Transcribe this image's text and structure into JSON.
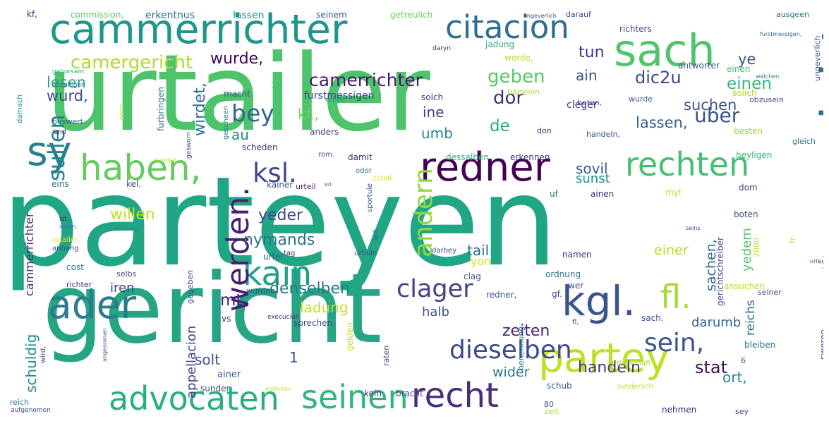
{
  "word_cloud": {
    "words": [
      {
        "text": "urtailer",
        "color": "#4dc36b"
      },
      {
        "text": "parteyen",
        "color": "#21a685"
      },
      {
        "text": "gericht",
        "color": "#25a584"
      },
      {
        "text": "cammerrichter",
        "color": "#1f968b"
      },
      {
        "text": "cammergericht",
        "color": "#2a788e"
      },
      {
        "text": "sach",
        "color": "#4fc46a"
      },
      {
        "text": "citacion",
        "color": "#2e6e8e"
      },
      {
        "text": "sy",
        "color": "#26828e"
      },
      {
        "text": "ader",
        "color": "#2a7b8e"
      },
      {
        "text": "haben,",
        "color": "#63cb5f"
      },
      {
        "text": "redner",
        "color": "#440154"
      },
      {
        "text": "rechten",
        "color": "#44bf70"
      },
      {
        "text": "kgl.",
        "color": "#3a548c"
      },
      {
        "text": "partey",
        "color": "#bddf26"
      },
      {
        "text": "advocaten",
        "color": "#29af7f"
      },
      {
        "text": "recht",
        "color": "#472d7b"
      },
      {
        "text": "seinen",
        "color": "#2fb47c"
      },
      {
        "text": "dieselben",
        "color": "#3e4a89"
      },
      {
        "text": "sein,",
        "color": "#39568c"
      },
      {
        "text": "kain",
        "color": "#1fa088"
      },
      {
        "text": "fl.",
        "color": "#a5db36"
      },
      {
        "text": "werden.",
        "color": "#481f70"
      },
      {
        "text": "ksl.",
        "color": "#3f4889"
      },
      {
        "text": "bey",
        "color": "#31688e"
      },
      {
        "text": "clager",
        "color": "#414487"
      },
      {
        "text": "sullen",
        "color": "#25848e"
      },
      {
        "text": "andern",
        "color": "#93d741"
      },
      {
        "text": "camergericht",
        "color": "#addc30"
      },
      {
        "text": "camerrichter",
        "color": "#481a6c"
      },
      {
        "text": "wurde,",
        "color": "#450559"
      },
      {
        "text": "uber",
        "color": "#3b528b"
      },
      {
        "text": "dic2u",
        "color": "#3f4788"
      },
      {
        "text": "tun",
        "color": "#46327e"
      },
      {
        "text": "einen",
        "color": "#35b779"
      },
      {
        "text": "ye",
        "color": "#3c4f8a"
      },
      {
        "text": "ain",
        "color": "#3d4e8a"
      },
      {
        "text": "geben",
        "color": "#58c765"
      },
      {
        "text": "dor",
        "color": "#472c7a"
      },
      {
        "text": "lesen",
        "color": "#22a884"
      },
      {
        "text": "wurd,",
        "color": "#3a538b"
      },
      {
        "text": "kf.,",
        "color": "#7ad151"
      },
      {
        "text": "ine",
        "color": "#424086"
      },
      {
        "text": "de",
        "color": "#26ad81"
      },
      {
        "text": "umb",
        "color": "#23898e"
      },
      {
        "text": "wirdet,",
        "color": "#2c728e"
      },
      {
        "text": "suchen",
        "color": "#3b518b"
      },
      {
        "text": "lassen,",
        "color": "#33638d"
      },
      {
        "text": "au",
        "color": "#27808e"
      },
      {
        "text": "sovil",
        "color": "#38588c"
      },
      {
        "text": "sunst",
        "color": "#21918c"
      },
      {
        "text": "willen",
        "color": "#c8e020"
      },
      {
        "text": "yeder",
        "color": "#3e4989"
      },
      {
        "text": "nymands",
        "color": "#2c728e"
      },
      {
        "text": "tail",
        "color": "#2d718e"
      },
      {
        "text": "yon",
        "color": "#d0e11c"
      },
      {
        "text": "mt.",
        "color": "#481c6e"
      },
      {
        "text": "denselben",
        "color": "#2a778e"
      },
      {
        "text": "ladung",
        "color": "#c2df23"
      },
      {
        "text": "einer",
        "color": "#b5de2b"
      },
      {
        "text": "yedem",
        "color": "#56c667"
      },
      {
        "text": "sachen,",
        "color": "#31688e"
      },
      {
        "text": "reichs",
        "color": "#2d708e"
      },
      {
        "text": "darumb",
        "color": "#34618d"
      },
      {
        "text": "halb",
        "color": "#3a548c"
      },
      {
        "text": "zeiten",
        "color": "#482374"
      },
      {
        "text": "appellacion",
        "color": "#3e4989"
      },
      {
        "text": "solt",
        "color": "#39558c"
      },
      {
        "text": "1",
        "color": "#3b528b"
      },
      {
        "text": "wider",
        "color": "#29798e"
      },
      {
        "text": "handeln",
        "color": "#453781"
      },
      {
        "text": "stat",
        "color": "#460b5e"
      },
      {
        "text": "ort,",
        "color": "#26828e"
      },
      {
        "text": "schuldig",
        "color": "#228b8d"
      },
      {
        "text": "cammerrichter",
        "color": "#46307e"
      },
      {
        "text": "iren",
        "color": "#433e85"
      },
      {
        "text": "urtailer",
        "color": "#fde725"
      },
      {
        "text": "kf,",
        "color": "#482878"
      },
      {
        "text": "commission,",
        "color": "#5ec962"
      },
      {
        "text": "erkentnus",
        "color": "#2c718e"
      },
      {
        "text": "lassen",
        "color": "#20928c"
      },
      {
        "text": "seinem",
        "color": "#365c8d"
      },
      {
        "text": "getreulich",
        "color": "#6ece58"
      },
      {
        "text": "ongeverlich",
        "color": "#3f4889"
      },
      {
        "text": "darauf",
        "color": "#3f4788"
      },
      {
        "text": "ausgeen",
        "color": "#2c728e"
      },
      {
        "text": "richters",
        "color": "#3f4788"
      },
      {
        "text": "furstmessigen,",
        "color": "#33638d"
      },
      {
        "text": "jadung",
        "color": "#2db27d"
      },
      {
        "text": "daryn",
        "color": "#481a6c"
      },
      {
        "text": "werde,",
        "color": "#b8de29"
      },
      {
        "text": "einen",
        "color": "#4ac16d"
      },
      {
        "text": "antworter",
        "color": "#3b528b"
      },
      {
        "text": "welchen",
        "color": "#2a788e"
      },
      {
        "text": "ungeverlich",
        "color": "#3b518b"
      },
      {
        "text": "gehorsam",
        "color": "#29af7f"
      },
      {
        "text": "darnach",
        "color": "#228c8d"
      },
      {
        "text": "abzulegen",
        "color": "#2c728e"
      },
      {
        "text": "beswert",
        "color": "#33638d"
      },
      {
        "text": "'und",
        "color": "#481467"
      },
      {
        "text": "12",
        "color": "#4ac16d"
      },
      {
        "text": "macht",
        "color": "#3b528b"
      },
      {
        "text": "furstmessigen",
        "color": "#3e4989"
      },
      {
        "text": "solch",
        "color": "#453882"
      },
      {
        "text": "wurde",
        "color": "#3a548c"
      },
      {
        "text": "solich",
        "color": "#b8de29"
      },
      {
        "text": "obzusein",
        "color": "#3f4889"
      },
      {
        "text": "boten,",
        "color": "#3c508b"
      },
      {
        "text": "parteien",
        "color": "#a8db34"
      },
      {
        "text": "handeln,",
        "color": "#3b528b"
      },
      {
        "text": "besten",
        "color": "#a0da39"
      },
      {
        "text": "cleger",
        "color": "#46337f"
      },
      {
        "text": "don",
        "color": "#481f70"
      },
      {
        "text": "echter",
        "color": "#228b8d"
      },
      {
        "text": "furbringen",
        "color": "#2a788e"
      },
      {
        "text": "darin",
        "color": "#b5de2b"
      },
      {
        "text": "gescheen",
        "color": "#25838e"
      },
      {
        "text": "anders",
        "color": "#3e4989"
      },
      {
        "text": "scheden",
        "color": "#463480"
      },
      {
        "text": "erkennen",
        "color": "#453781"
      },
      {
        "text": "desselben",
        "color": "#31b57b"
      },
      {
        "text": "damit",
        "color": "#472c7a"
      },
      {
        "text": "rom.",
        "color": "#3e4c8a"
      },
      {
        "text": "odor",
        "color": "#2c718e"
      },
      {
        "text": "zufall",
        "color": "#dde318"
      },
      {
        "text": "heyligen",
        "color": "#31b57b"
      },
      {
        "text": "gleich",
        "color": "#2e6d8e"
      },
      {
        "text": "dom",
        "color": "#3e4989"
      },
      {
        "text": "hundert",
        "color": "#bddf26"
      },
      {
        "text": "gesworn",
        "color": "#3e4989"
      },
      {
        "text": "eins",
        "color": "#2b748e"
      },
      {
        "text": "kel.",
        "color": "#3e4a89"
      },
      {
        "text": "kainer",
        "color": "#3b528b"
      },
      {
        "text": "urteil",
        "color": "#481b6d"
      },
      {
        "text": "ksl.",
        "color": "#3e4c8a"
      },
      {
        "text": "ainen",
        "color": "#472c7a"
      },
      {
        "text": "myt",
        "color": "#b8de29"
      },
      {
        "text": "uf",
        "color": "#2d708e"
      },
      {
        "text": "boten",
        "color": "#3b528b"
      },
      {
        "text": "ist.",
        "color": "#482475"
      },
      {
        "text": "sollen.",
        "color": "#2c728e"
      },
      {
        "text": "mitsampt",
        "color": "#27808e"
      },
      {
        "text": "aid.",
        "color": "#38588c"
      },
      {
        "text": "sportule",
        "color": "#3b528b"
      },
      {
        "text": "seins",
        "color": "#3e4989"
      },
      {
        "text": "fr.",
        "color": "#bddf26"
      },
      {
        "text": "2000",
        "color": "#bddf26"
      },
      {
        "text": "urteyler",
        "color": "#2c728e"
      },
      {
        "text": "urtailer,",
        "color": "#fde725"
      },
      {
        "text": "anhang",
        "color": "#3e4989"
      },
      {
        "text": "cost",
        "color": "#2c728e"
      },
      {
        "text": "urtel",
        "color": "#3b528b"
      },
      {
        "text": "tag",
        "color": "#482878"
      },
      {
        "text": "urtailn",
        "color": "#3b528b"
      },
      {
        "text": "darbey",
        "color": "#3e4989"
      },
      {
        "text": "namen",
        "color": "#482878"
      },
      {
        "text": "clag",
        "color": "#3b528b"
      },
      {
        "text": "ordnung",
        "color": "#2c718e"
      },
      {
        "text": "selbs",
        "color": "#3e4989"
      },
      {
        "text": "wer",
        "color": "#3b528b"
      },
      {
        "text": "ansuchen",
        "color": "#b8de29"
      },
      {
        "text": "richter",
        "color": "#472c7a"
      },
      {
        "text": "gegeben",
        "color": "#3e4989"
      },
      {
        "text": "wurden",
        "color": "#3b528b"
      },
      {
        "text": "redner,",
        "color": "#3b528b"
      },
      {
        "text": "gf.",
        "color": "#3e4989"
      },
      {
        "text": "f.",
        "color": "#3b528b"
      },
      {
        "text": "seiner",
        "color": "#3e4989"
      },
      {
        "text": "fl,",
        "color": "#3b528b"
      },
      {
        "text": "vs",
        "color": "#472c7a"
      },
      {
        "text": "sprechen",
        "color": "#3e4989"
      },
      {
        "text": "execucion",
        "color": "#472c7a"
      },
      {
        "text": "sach.",
        "color": "#3b528b"
      },
      {
        "text": "sweren,",
        "color": "#3e4989"
      },
      {
        "text": "cammergerichts",
        "color": "#2c728e"
      },
      {
        "text": "gerichtschreiber",
        "color": "#3e4989"
      },
      {
        "text": "bleiben",
        "color": "#2c728e"
      },
      {
        "text": "6",
        "color": "#3b528b"
      },
      {
        "text": "wird,",
        "color": "#3e4989"
      },
      {
        "text": "angenomen",
        "color": "#3b528b"
      },
      {
        "text": "gelden",
        "color": "#bddf26"
      },
      {
        "text": "raten",
        "color": "#3e4989"
      },
      {
        "text": "benennung",
        "color": "#2c718e"
      },
      {
        "text": "ritterschaft",
        "color": "#a8db34"
      },
      {
        "text": "ainer",
        "color": "#3b528b"
      },
      {
        "text": "sunder",
        "color": "#3e4989"
      },
      {
        "text": "entlichen",
        "color": "#bddf26"
      },
      {
        "text": "schub",
        "color": "#3b528b"
      },
      {
        "text": "sunderlich",
        "color": "#bddf26"
      },
      {
        "text": "reich",
        "color": "#2c728e"
      },
      {
        "text": "aufgenomen",
        "color": "#3e4989"
      },
      {
        "text": "kein",
        "color": "#472c7a"
      },
      {
        "text": "bracht",
        "color": "#3e4989"
      },
      {
        "text": "80",
        "color": "#3b528b"
      },
      {
        "text": "zeit",
        "color": "#a8db34"
      },
      {
        "text": "nehmen",
        "color": "#482878"
      },
      {
        "text": "sey",
        "color": "#3b528b"
      }
    ]
  }
}
